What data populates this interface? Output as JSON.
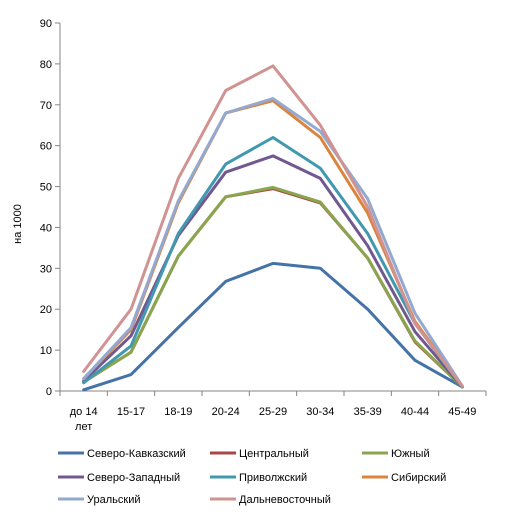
{
  "chart_data": {
    "type": "line",
    "title": "",
    "xlabel": "",
    "ylabel": "на 1000",
    "ylim": [
      0,
      90
    ],
    "yticks": [
      0,
      10,
      20,
      30,
      40,
      50,
      60,
      70,
      80,
      90
    ],
    "grid": false,
    "legend_position": "bottom",
    "categories": [
      [
        "до 14",
        "лет"
      ],
      [
        "15-17"
      ],
      [
        "18-19"
      ],
      [
        "20-24"
      ],
      [
        "25-29"
      ],
      [
        "30-34"
      ],
      [
        "35-39"
      ],
      [
        "40-44"
      ],
      [
        "45-49"
      ]
    ],
    "series": [
      {
        "name": "Северо-Кавказский",
        "color": "#4572a7",
        "values": [
          0.3,
          4,
          15.5,
          26.8,
          31.2,
          30,
          20,
          7.5,
          1
        ]
      },
      {
        "name": "Центральный",
        "color": "#aa4643",
        "values": [
          2.2,
          9.5,
          33,
          47.5,
          49.5,
          46,
          32.5,
          12,
          1
        ]
      },
      {
        "name": "Южный",
        "color": "#89a54e",
        "values": [
          2.2,
          9.5,
          33,
          47.5,
          49.8,
          46.2,
          32.5,
          12.2,
          1
        ]
      },
      {
        "name": "Северо-Западный",
        "color": "#71588f",
        "values": [
          2.5,
          13.5,
          38,
          53.5,
          57.5,
          52,
          35.5,
          14.5,
          1
        ]
      },
      {
        "name": "Приволжский",
        "color": "#4198af",
        "values": [
          2,
          11,
          38.5,
          55.5,
          62,
          54.5,
          38.5,
          16.5,
          1
        ]
      },
      {
        "name": "Сибирский",
        "color": "#db843d",
        "values": [
          3,
          15,
          46,
          68,
          71,
          62,
          43.5,
          17,
          1.2
        ]
      },
      {
        "name": "Уральский",
        "color": "#93a9cf",
        "values": [
          3,
          15.5,
          46.5,
          68,
          71.5,
          63.5,
          47,
          19,
          1.2
        ]
      },
      {
        "name": "Дальневосточный",
        "color": "#d19392",
        "values": [
          4.8,
          20,
          52,
          73.5,
          79.5,
          65,
          45,
          16.5,
          1.2
        ]
      }
    ]
  }
}
